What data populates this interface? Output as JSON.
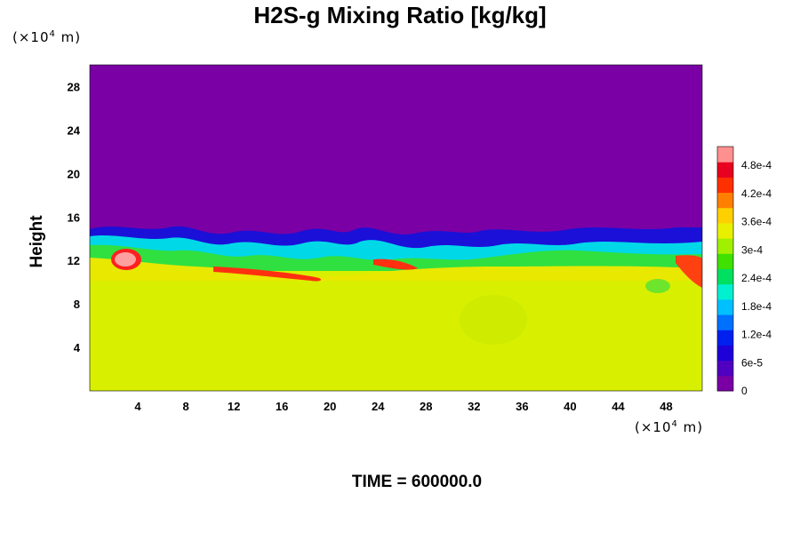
{
  "chart_data": {
    "type": "heatmap",
    "title": "H2S-g Mixing Ratio [kg/kg]",
    "ylabel": "Height",
    "xlabel": "",
    "x_unit": {
      "prefix": "(×10",
      "exp": "4",
      "suffix": " m)"
    },
    "y_unit": {
      "prefix": "(×10",
      "exp": "4",
      "suffix": " m)"
    },
    "xlim": [
      0,
      51
    ],
    "ylim": [
      0,
      30
    ],
    "x_ticks": [
      4,
      8,
      12,
      16,
      20,
      24,
      28,
      32,
      36,
      40,
      44,
      48
    ],
    "y_ticks": [
      4,
      8,
      12,
      16,
      20,
      24,
      28
    ],
    "colorbar": {
      "range": [
        0,
        0.00052
      ],
      "labels": [
        "0",
        "6e-5",
        "1.2e-4",
        "1.8e-4",
        "2.4e-4",
        "3e-4",
        "3.6e-4",
        "4.2e-4",
        "4.8e-4"
      ],
      "label_values": [
        0,
        6e-05,
        0.00012,
        0.00018,
        0.00024,
        0.0003,
        0.00036,
        0.00042,
        0.00048
      ],
      "colors": [
        "#7a00a5",
        "#5000c0",
        "#1e00d8",
        "#0020f0",
        "#0070ff",
        "#00c0ff",
        "#00f0d0",
        "#00e060",
        "#40e000",
        "#a0f000",
        "#e8f000",
        "#ffd000",
        "#ff8000",
        "#ff3000",
        "#e80020",
        "#ff9090"
      ]
    },
    "field_summary": {
      "upper_region_value": 0,
      "lower_region_value": 0.00035,
      "mixing_layer_height_range": [
        10,
        15
      ]
    }
  },
  "footer": {
    "time_label": "TIME = 600000.0"
  }
}
